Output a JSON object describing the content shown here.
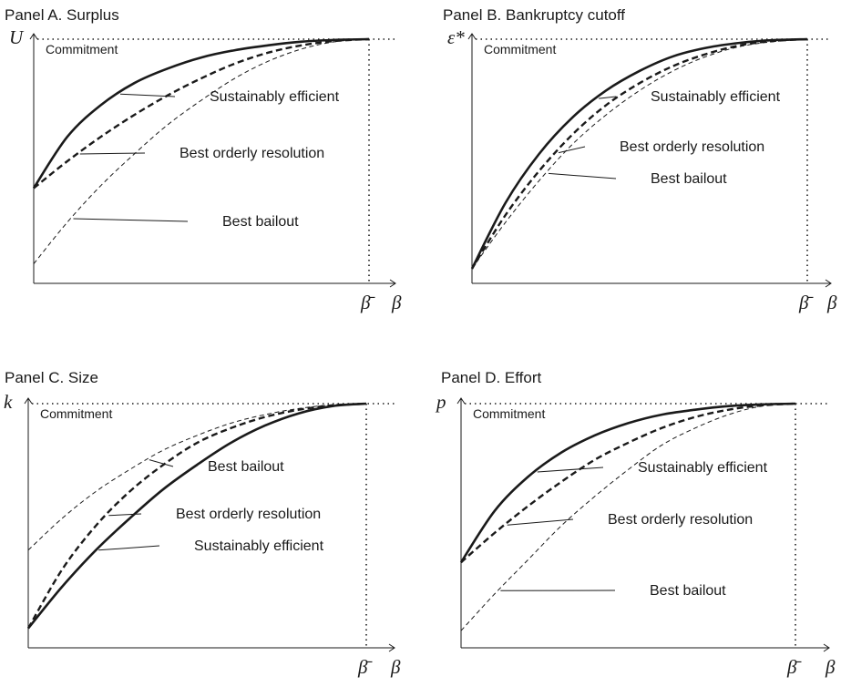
{
  "chart_data": [
    {
      "type": "line",
      "title": "Panel A. Surplus",
      "ylabel": "U",
      "xlabel": "β",
      "xtick_label": "β̄",
      "annotation": "Commitment",
      "xlim": [
        0,
        1.1
      ],
      "ylim": [
        0,
        1
      ],
      "series": [
        {
          "name": "Sustainably efficient",
          "style": "solid-thick",
          "x": [
            0,
            0.1,
            0.2,
            0.3,
            0.4,
            0.5,
            0.6,
            0.7,
            0.8,
            0.9,
            1.0
          ],
          "y": [
            0.39,
            0.6,
            0.73,
            0.82,
            0.88,
            0.925,
            0.955,
            0.975,
            0.99,
            0.997,
            1.0
          ]
        },
        {
          "name": "Best orderly resolution",
          "style": "dashed-thick",
          "x": [
            0,
            0.1,
            0.2,
            0.3,
            0.4,
            0.5,
            0.6,
            0.7,
            0.8,
            0.9,
            1.0
          ],
          "y": [
            0.39,
            0.5,
            0.6,
            0.69,
            0.77,
            0.84,
            0.9,
            0.945,
            0.975,
            0.993,
            1.0
          ]
        },
        {
          "name": "Best bailout",
          "style": "dashed-thin",
          "x": [
            0,
            0.1,
            0.2,
            0.3,
            0.4,
            0.5,
            0.6,
            0.7,
            0.8,
            0.9,
            1.0
          ],
          "y": [
            0.08,
            0.25,
            0.4,
            0.53,
            0.65,
            0.75,
            0.84,
            0.91,
            0.96,
            0.99,
            1.0
          ]
        }
      ],
      "labels": [
        {
          "text": "Sustainably efficient",
          "series": "Sustainably efficient",
          "at_x": 0.25
        },
        {
          "text": "Best orderly resolution",
          "series": "Best orderly resolution",
          "at_x": 0.13
        },
        {
          "text": "Best bailout",
          "series": "Best bailout",
          "at_x": 0.11
        }
      ]
    },
    {
      "type": "line",
      "title": "Panel B. Bankruptcy cutoff",
      "ylabel": "ε*",
      "xlabel": "β",
      "xtick_label": "β̄",
      "annotation": "Commitment",
      "xlim": [
        0,
        1.1
      ],
      "ylim": [
        0,
        1
      ],
      "series": [
        {
          "name": "Sustainably efficient",
          "style": "solid-thick",
          "x": [
            0,
            0.1,
            0.2,
            0.3,
            0.4,
            0.5,
            0.6,
            0.7,
            0.8,
            0.9,
            1.0
          ],
          "y": [
            0.06,
            0.33,
            0.53,
            0.68,
            0.79,
            0.87,
            0.93,
            0.965,
            0.985,
            0.996,
            1.0
          ]
        },
        {
          "name": "Best orderly resolution",
          "style": "dashed-thick",
          "x": [
            0,
            0.1,
            0.2,
            0.3,
            0.4,
            0.5,
            0.6,
            0.7,
            0.8,
            0.9,
            1.0
          ],
          "y": [
            0.06,
            0.28,
            0.46,
            0.61,
            0.73,
            0.82,
            0.89,
            0.94,
            0.975,
            0.993,
            1.0
          ]
        },
        {
          "name": "Best bailout",
          "style": "dashed-thin",
          "x": [
            0,
            0.1,
            0.2,
            0.3,
            0.4,
            0.5,
            0.6,
            0.7,
            0.8,
            0.9,
            1.0
          ],
          "y": [
            0.06,
            0.25,
            0.42,
            0.57,
            0.69,
            0.79,
            0.87,
            0.93,
            0.97,
            0.99,
            1.0
          ]
        }
      ],
      "labels": [
        {
          "text": "Sustainably efficient",
          "series": "Sustainably efficient",
          "at_x": 0.37
        },
        {
          "text": "Best orderly resolution",
          "series": "Best orderly resolution",
          "at_x": 0.25
        },
        {
          "text": "Best bailout",
          "series": "Best bailout",
          "at_x": 0.22
        }
      ]
    },
    {
      "type": "line",
      "title": "Panel C. Size",
      "ylabel": "k",
      "xlabel": "β",
      "xtick_label": "β̄",
      "annotation": "Commitment",
      "xlim": [
        0,
        1.1
      ],
      "ylim": [
        0,
        1
      ],
      "series": [
        {
          "name": "Sustainably efficient",
          "style": "solid-thick",
          "x": [
            0,
            0.1,
            0.2,
            0.3,
            0.4,
            0.5,
            0.6,
            0.7,
            0.8,
            0.9,
            1.0
          ],
          "y": [
            0.08,
            0.25,
            0.4,
            0.53,
            0.65,
            0.75,
            0.84,
            0.91,
            0.96,
            0.99,
            1.0
          ]
        },
        {
          "name": "Best orderly resolution",
          "style": "dashed-thick",
          "x": [
            0,
            0.1,
            0.2,
            0.3,
            0.4,
            0.5,
            0.6,
            0.7,
            0.8,
            0.9,
            1.0
          ],
          "y": [
            0.08,
            0.32,
            0.5,
            0.64,
            0.75,
            0.84,
            0.9,
            0.945,
            0.975,
            0.993,
            1.0
          ]
        },
        {
          "name": "Best bailout",
          "style": "dashed-thin",
          "x": [
            0,
            0.1,
            0.2,
            0.3,
            0.4,
            0.5,
            0.6,
            0.7,
            0.8,
            0.9,
            1.0
          ],
          "y": [
            0.4,
            0.53,
            0.64,
            0.73,
            0.81,
            0.87,
            0.92,
            0.955,
            0.98,
            0.995,
            1.0
          ]
        }
      ],
      "labels": [
        {
          "text": "Best bailout",
          "series": "Best bailout",
          "at_x": 0.35
        },
        {
          "text": "Best orderly resolution",
          "series": "Best orderly resolution",
          "at_x": 0.23
        },
        {
          "text": "Sustainably efficient",
          "series": "Sustainably efficient",
          "at_x": 0.2
        }
      ]
    },
    {
      "type": "line",
      "title": "Panel D. Effort",
      "ylabel": "p",
      "xlabel": "β",
      "xtick_label": "β̄",
      "annotation": "Commitment",
      "xlim": [
        0,
        1.1
      ],
      "ylim": [
        0,
        1
      ],
      "series": [
        {
          "name": "Sustainably efficient",
          "style": "solid-thick",
          "x": [
            0,
            0.1,
            0.2,
            0.3,
            0.4,
            0.5,
            0.6,
            0.7,
            0.8,
            0.9,
            1.0
          ],
          "y": [
            0.35,
            0.56,
            0.7,
            0.8,
            0.87,
            0.92,
            0.955,
            0.975,
            0.99,
            0.997,
            1.0
          ]
        },
        {
          "name": "Best orderly resolution",
          "style": "dashed-thick",
          "x": [
            0,
            0.1,
            0.2,
            0.3,
            0.4,
            0.5,
            0.6,
            0.7,
            0.8,
            0.9,
            1.0
          ],
          "y": [
            0.35,
            0.47,
            0.58,
            0.68,
            0.77,
            0.84,
            0.9,
            0.945,
            0.975,
            0.993,
            1.0
          ]
        },
        {
          "name": "Best bailout",
          "style": "dashed-thin",
          "x": [
            0,
            0.1,
            0.2,
            0.3,
            0.4,
            0.5,
            0.6,
            0.7,
            0.8,
            0.9,
            1.0
          ],
          "y": [
            0.07,
            0.22,
            0.36,
            0.5,
            0.62,
            0.73,
            0.83,
            0.9,
            0.955,
            0.99,
            1.0
          ]
        }
      ],
      "labels": [
        {
          "text": "Sustainably efficient",
          "series": "Sustainably efficient",
          "at_x": 0.22
        },
        {
          "text": "Best orderly resolution",
          "series": "Best orderly resolution",
          "at_x": 0.13
        },
        {
          "text": "Best bailout",
          "series": "Best bailout",
          "at_x": 0.11
        }
      ]
    }
  ]
}
